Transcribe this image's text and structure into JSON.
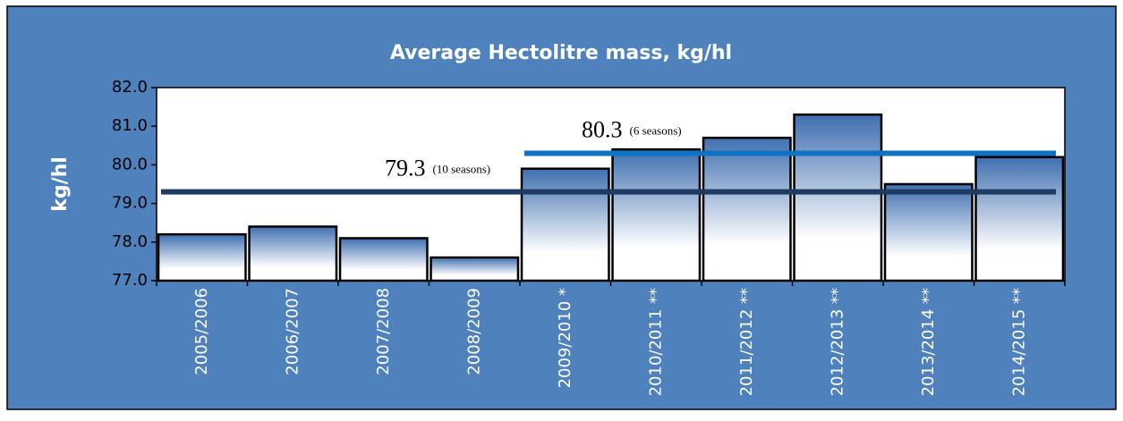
{
  "chart_data": {
    "type": "bar",
    "title": "Average Hectolitre mass, kg/hl",
    "y_label": "kg/hl",
    "categories": [
      "2005/2006",
      "2006/2007",
      "2007/2008",
      "2008/2009",
      "2009/2010 *",
      "2010/2011 **",
      "2011/2012 **",
      "2012/2013 **",
      "2013/2014 **",
      "2014/2015 **"
    ],
    "values": [
      78.2,
      78.4,
      78.1,
      77.6,
      79.9,
      80.4,
      80.7,
      81.3,
      79.5,
      80.2
    ],
    "color": "#4f81bd",
    "ylim": [
      77,
      82
    ],
    "yticks": [
      {
        "value": 77,
        "label": "77.0"
      },
      {
        "value": 78,
        "label": "78.0"
      },
      {
        "value": 79,
        "label": "79.0"
      },
      {
        "value": 80,
        "label": "80.0"
      },
      {
        "value": 81,
        "label": "81.0"
      },
      {
        "value": 82,
        "label": "82.0"
      }
    ],
    "reference_lines": [
      {
        "value": 79.3,
        "note": "(10 seasons)",
        "color": "#1f3b64"
      },
      {
        "value": 80.3,
        "note": "(6 seasons)",
        "color": "#0f72c2"
      }
    ]
  }
}
